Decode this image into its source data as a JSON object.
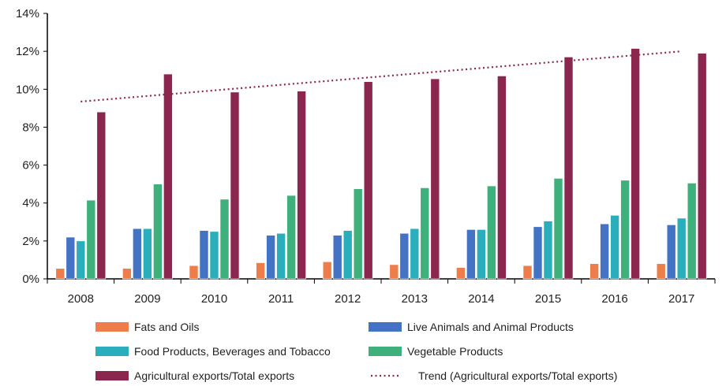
{
  "chart_data": {
    "type": "bar",
    "categories": [
      "2008",
      "2009",
      "2010",
      "2011",
      "2012",
      "2013",
      "2014",
      "2015",
      "2016",
      "2017"
    ],
    "ylim": [
      0,
      14
    ],
    "yticks": [
      "0%",
      "2%",
      "4%",
      "6%",
      "8%",
      "10%",
      "12%",
      "14%"
    ],
    "ytick_values": [
      0,
      2,
      4,
      6,
      8,
      10,
      12,
      14
    ],
    "grid": false,
    "legend_position": "bottom",
    "series": [
      {
        "name": "Fats and Oils",
        "color": "#ED7D4B",
        "values": [
          0.55,
          0.55,
          0.7,
          0.85,
          0.9,
          0.75,
          0.6,
          0.7,
          0.8,
          0.8
        ]
      },
      {
        "name": "Live Animals and Animal Products",
        "color": "#4472C4",
        "values": [
          2.2,
          2.65,
          2.55,
          2.3,
          2.3,
          2.4,
          2.6,
          2.75,
          2.9,
          2.85
        ]
      },
      {
        "name": "Food Products, Beverages and Tobacco",
        "color": "#2BAEBB",
        "values": [
          2.0,
          2.65,
          2.5,
          2.4,
          2.55,
          2.65,
          2.6,
          3.05,
          3.35,
          3.2
        ]
      },
      {
        "name": "Vegetable Products",
        "color": "#3DB07C",
        "values": [
          4.15,
          5.0,
          4.2,
          4.4,
          4.75,
          4.8,
          4.9,
          5.3,
          5.2,
          5.05
        ]
      },
      {
        "name": "Agricultural exports/Total exports",
        "color": "#8B274E",
        "values": [
          8.8,
          10.8,
          9.85,
          9.9,
          10.4,
          10.55,
          10.7,
          11.7,
          12.15,
          11.9
        ]
      }
    ],
    "trend": {
      "name": "Trend (Agricultural exports/Total exports)",
      "color": "#8B274E",
      "style": "dotted",
      "start": 9.35,
      "end": 12.0
    }
  }
}
